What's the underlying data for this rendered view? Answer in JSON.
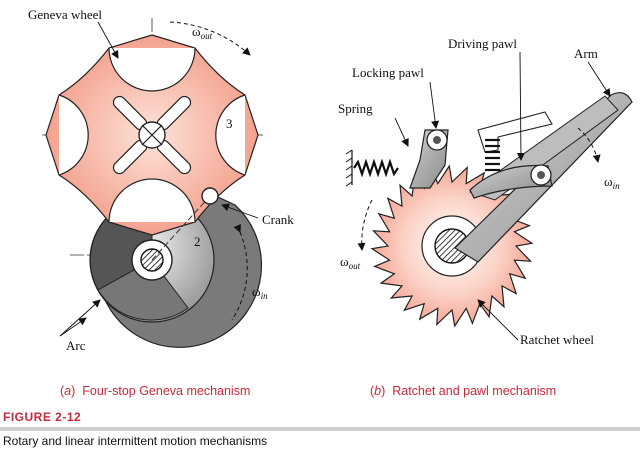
{
  "panel_a": {
    "geneva_wheel_label": "Geneva wheel",
    "omega_out_symbol": "ω",
    "omega_out_sub": "out",
    "wheel_number": "3",
    "crank_label": "Crank",
    "crank_number": "2",
    "omega_in_symbol": "ω",
    "omega_in_sub": "in",
    "arc_label": "Arc",
    "caption_letter": "a",
    "caption_text": "Four-stop Geneva mechanism"
  },
  "panel_b": {
    "driving_pawl_label": "Driving pawl",
    "arm_label": "Arm",
    "locking_pawl_label": "Locking pawl",
    "spring_label": "Spring",
    "omega_in_symbol": "ω",
    "omega_in_sub": "in",
    "omega_out_symbol": "ω",
    "omega_out_sub": "out",
    "ratchet_label": "Ratchet wheel",
    "caption_letter": "b",
    "caption_text": "Ratchet and pawl mechanism"
  },
  "figure": {
    "number": "FIGURE 2-12",
    "title": "Rotary and linear intermittent motion mechanisms"
  },
  "colors": {
    "accent": "#c62a3a",
    "geneva_fill": "#f6a58f",
    "ratchet_fill": "#f7b3a1"
  }
}
